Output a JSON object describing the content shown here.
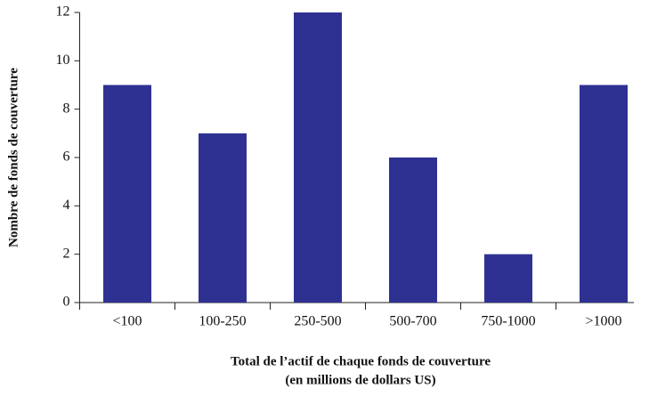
{
  "chart_data": {
    "type": "bar",
    "ylabel": "Nombre de fonds de couverture",
    "xlabel": [
      "Total de l’actif de chaque fonds de couverture",
      "(en millions de dollars US)"
    ],
    "categories": [
      "<100",
      "100-250",
      "250-500",
      "500-700",
      "750-1000",
      ">1000"
    ],
    "values": [
      9,
      7,
      12,
      6,
      2,
      9
    ],
    "color": "#2e3192",
    "ylim": [
      0,
      12
    ],
    "yticks": [
      0,
      2,
      4,
      6,
      8,
      10,
      12
    ],
    "grid": false
  }
}
